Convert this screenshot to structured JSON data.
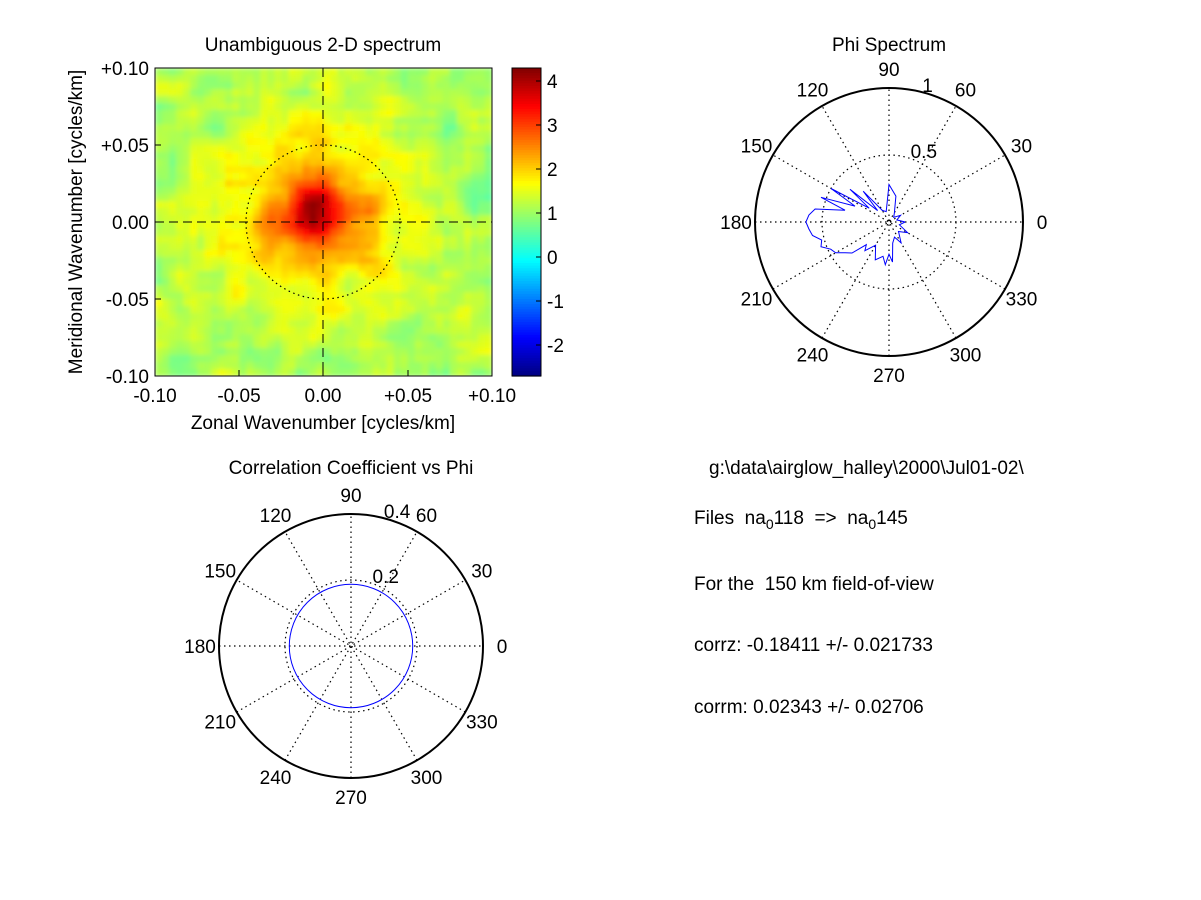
{
  "colors": {
    "background": "#ffffff",
    "axis": "#000000",
    "trace": "#0000ff",
    "colormap": "jet"
  },
  "chart_data": [
    {
      "type": "heatmap",
      "title": "Unambiguous 2-D spectrum",
      "xlabel": "Zonal Wavenumber [cycles/km]",
      "ylabel": "Meridional Wavenumber [cycles/km]",
      "xlim": [
        -0.1,
        0.1
      ],
      "ylim": [
        -0.1,
        0.1
      ],
      "x_ticks": [
        "-0.10",
        "-0.05",
        "0.00",
        "+0.05",
        "+0.10"
      ],
      "y_ticks": [
        "+0.10",
        "+0.05",
        "0.00",
        "-0.05",
        "-0.10"
      ],
      "reference_circle_radius": 0.05,
      "crosshair": "dashed",
      "peak": {
        "x": -0.005,
        "y": 0.005,
        "value": 4.2
      },
      "background_level": 1.1,
      "colorbar": {
        "range": [
          -2.7,
          4.3
        ],
        "ticks": [
          "4",
          "3",
          "2",
          "1",
          "0",
          "-1",
          "-2"
        ]
      },
      "grid": false
    },
    {
      "type": "line",
      "subtype": "polar",
      "title": "Phi Spectrum",
      "angle_ticks": [
        "0",
        "30",
        "60",
        "90",
        "120",
        "150",
        "180",
        "210",
        "240",
        "270",
        "300",
        "330"
      ],
      "r_ticks": [
        "0.5",
        "1"
      ],
      "rlim": [
        0,
        1
      ],
      "grid": "dotted",
      "series": [
        {
          "angles_deg": [
            0,
            15,
            30,
            45,
            60,
            75,
            90,
            105,
            120,
            130,
            135,
            140,
            145,
            150,
            155,
            160,
            165,
            170,
            175,
            180,
            185,
            190,
            195,
            200,
            205,
            210,
            215,
            220,
            225,
            230,
            240,
            250,
            260,
            265,
            270,
            275,
            280,
            290,
            300,
            315,
            330,
            345,
            360
          ],
          "r": [
            0.12,
            0.06,
            0.1,
            0.05,
            0.08,
            0.2,
            0.28,
            0.08,
            0.1,
            0.3,
            0.12,
            0.38,
            0.18,
            0.5,
            0.28,
            0.54,
            0.34,
            0.56,
            0.6,
            0.62,
            0.6,
            0.58,
            0.52,
            0.54,
            0.48,
            0.46,
            0.4,
            0.36,
            0.24,
            0.28,
            0.2,
            0.3,
            0.26,
            0.32,
            0.24,
            0.3,
            0.16,
            0.12,
            0.18,
            0.1,
            0.16,
            0.08,
            0.12
          ]
        }
      ]
    },
    {
      "type": "line",
      "subtype": "polar",
      "title": "Correlation Coefficient vs Phi",
      "angle_ticks": [
        "0",
        "30",
        "60",
        "90",
        "120",
        "150",
        "180",
        "210",
        "240",
        "270",
        "300",
        "330"
      ],
      "r_ticks": [
        "0.2",
        "0.4"
      ],
      "rlim": [
        0,
        0.4
      ],
      "grid": "dotted",
      "series": [
        {
          "shape": "circle",
          "corr_zonal": -0.18411,
          "corr_meridional": 0.02343,
          "radius": 0.187
        }
      ]
    }
  ],
  "info": {
    "path": "g:\\data\\airglow_halley\\2000\\Jul01-02\\",
    "files_prefix": "Files  na",
    "files_sub1": "0",
    "files_first": "118  =>  na",
    "files_sub2": "0",
    "files_last": "145",
    "fov": "For the  150 km field-of-view",
    "corrz": "corrz: -0.18411 +/- 0.021733",
    "corrm": "corrm: 0.02343 +/- 0.02706"
  }
}
